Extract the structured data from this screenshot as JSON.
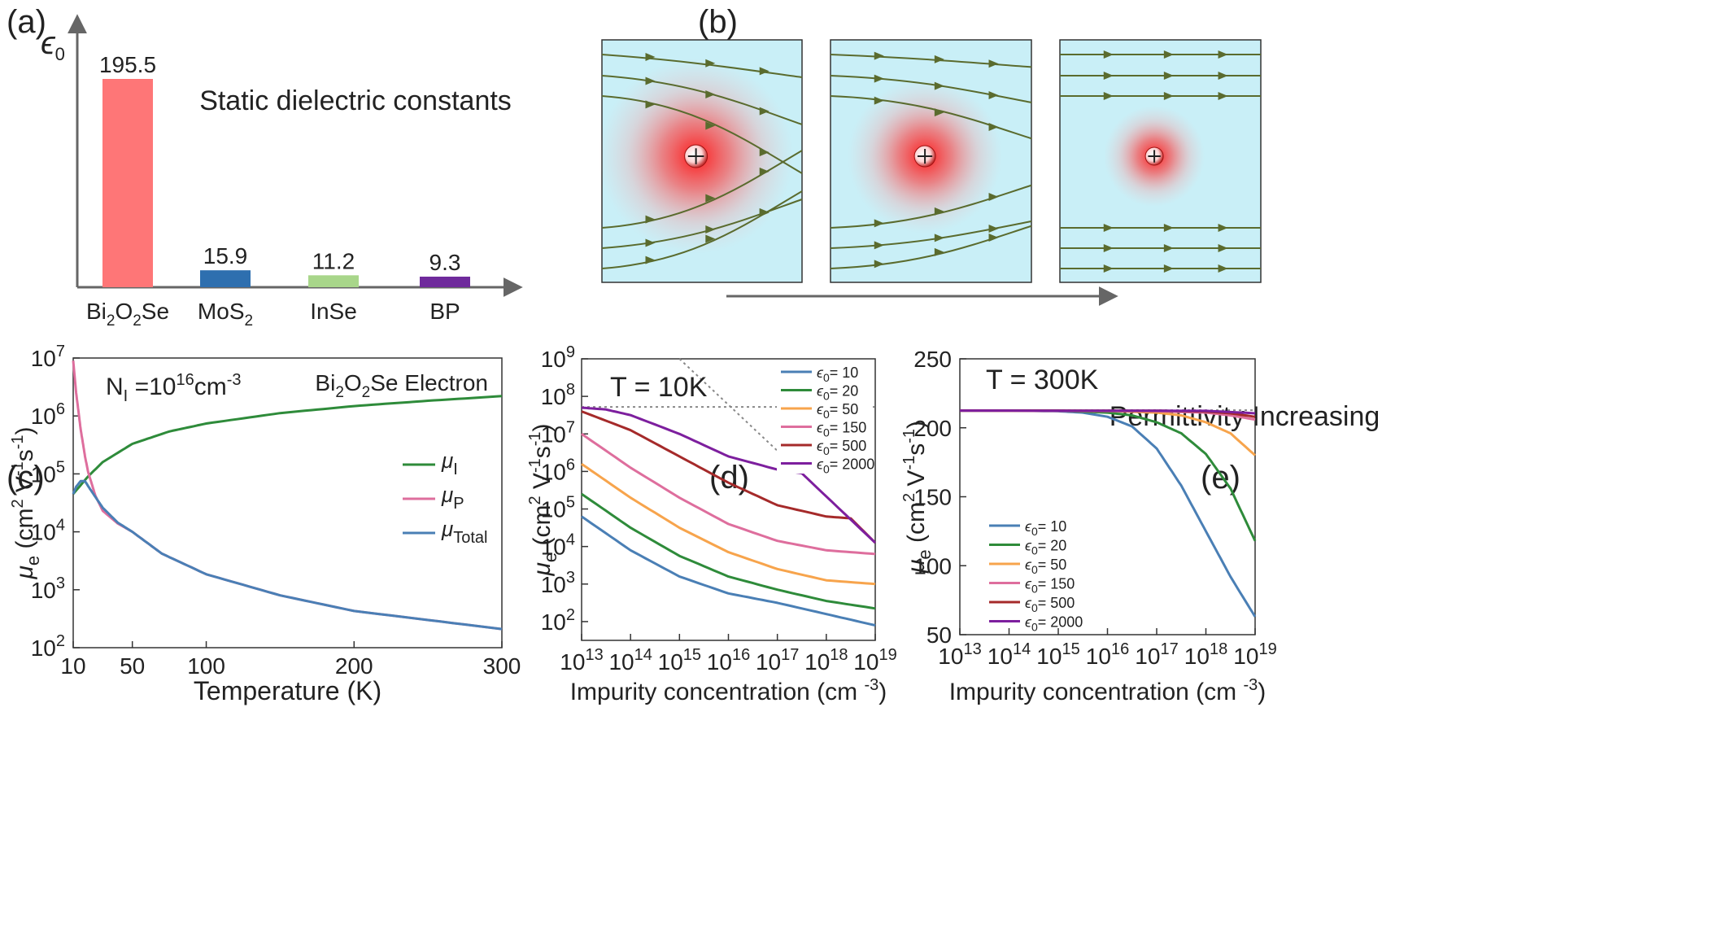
{
  "panel_labels": {
    "a": "(a)",
    "b": "(b)",
    "c": "(c)",
    "d": "(d)",
    "e": "(e)"
  },
  "colors": {
    "eps10": "#4a7fb5",
    "eps20": "#2e8b3a",
    "eps50": "#f7a44c",
    "eps150": "#de6e9d",
    "eps500": "#a52a2a",
    "eps2000": "#7d1f9e",
    "mu_I": "#2e8b3a",
    "mu_P": "#de6e9d",
    "mu_Total": "#4a7fb5",
    "field_bg": "#c9eff7",
    "field_line": "#5a6b2e",
    "charge": "#e8201f"
  },
  "panel_b": {
    "arrow_label": "Permittivity Increasing"
  },
  "chart_data": [
    {
      "id": "a",
      "type": "bar",
      "title": "Static dielectric constants",
      "ylabel": "ϵ0",
      "categories": [
        "Bi2O2Se",
        "MoS2",
        "InSe",
        "BP"
      ],
      "category_parts": [
        [
          {
            "t": "Bi"
          },
          {
            "t": "2",
            "sub": true
          },
          {
            "t": "O"
          },
          {
            "t": "2",
            "sub": true
          },
          {
            "t": "Se"
          }
        ],
        [
          {
            "t": "MoS"
          },
          {
            "t": "2",
            "sub": true
          }
        ],
        [
          {
            "t": "InSe"
          }
        ],
        [
          {
            "t": "BP"
          }
        ]
      ],
      "values": [
        195.5,
        15.9,
        11.2,
        9.3
      ],
      "value_labels": [
        "195.5",
        "15.9",
        "11.2",
        "9.3"
      ],
      "colors": [
        "#fe7677",
        "#2e6faf",
        "#a8d68a",
        "#6f2a9c"
      ],
      "ylim": [
        0,
        200
      ]
    },
    {
      "id": "c",
      "type": "line",
      "annotation_left": "NI =10^16 cm^-3",
      "annotation_right": "Bi2O2Se  Electron",
      "xlabel": "Temperature (K)",
      "ylabel": "μe (cm2 V-1 s-1)",
      "yscale": "log",
      "xlim": [
        10,
        300
      ],
      "ylim": [
        100,
        10000000
      ],
      "xticks": [
        10,
        50,
        100,
        200,
        300
      ],
      "yticks_exp": [
        2,
        3,
        4,
        5,
        6,
        7
      ],
      "series": [
        {
          "name": "μI",
          "color": "#2e8b3a",
          "x": [
            10,
            20,
            30,
            50,
            75,
            100,
            150,
            200,
            250,
            300
          ],
          "y": [
            45000,
            90000,
            160000,
            330000,
            540000,
            740000,
            1120000,
            1480000,
            1830000,
            2200000
          ]
        },
        {
          "name": "μP",
          "color": "#de6e9d",
          "x": [
            10,
            12,
            15,
            18,
            20,
            25,
            30,
            40,
            50,
            70,
            100,
            150,
            200,
            300
          ],
          "y": [
            9000000,
            2500000,
            600000,
            200000,
            110000,
            42000,
            23000,
            14000,
            10000,
            4200,
            1850,
            800,
            430,
            210
          ]
        },
        {
          "name": "μTotal",
          "color": "#4a7fb5",
          "x": [
            10,
            12,
            15,
            18,
            20,
            25,
            30,
            40,
            50,
            70,
            100,
            150,
            200,
            300
          ],
          "y": [
            45000,
            60000,
            75000,
            75000,
            62000,
            40000,
            26000,
            14500,
            10000,
            4200,
            1850,
            800,
            430,
            210
          ]
        }
      ]
    },
    {
      "id": "d",
      "type": "line",
      "annotation": "T = 10K",
      "xlabel": "Impurity concentration (cm -3)",
      "ylabel": "μe (cm2 V-1 s-1)",
      "xscale": "log",
      "yscale": "log",
      "xlim_exp": [
        13,
        19
      ],
      "ylim_exp": [
        1.5,
        9
      ],
      "xticks_exp": [
        13,
        14,
        15,
        16,
        17,
        18,
        19
      ],
      "yticks_exp": [
        2,
        3,
        4,
        5,
        6,
        7,
        8,
        9
      ],
      "series": [
        {
          "name": "ϵ0 = 10",
          "color": "#4a7fb5",
          "x_exp": [
            13,
            14,
            15,
            16,
            17,
            18,
            19
          ],
          "y_exp": [
            4.8,
            3.9,
            3.2,
            2.75,
            2.5,
            2.2,
            1.9
          ]
        },
        {
          "name": "ϵ0 = 20",
          "color": "#2e8b3a",
          "x_exp": [
            13,
            14,
            15,
            16,
            17,
            18,
            19
          ],
          "y_exp": [
            5.4,
            4.5,
            3.75,
            3.2,
            2.85,
            2.55,
            2.35
          ]
        },
        {
          "name": "ϵ0 = 50",
          "color": "#f7a44c",
          "x_exp": [
            13,
            14,
            15,
            16,
            17,
            18,
            19
          ],
          "y_exp": [
            6.2,
            5.3,
            4.5,
            3.85,
            3.4,
            3.1,
            3.0
          ]
        },
        {
          "name": "ϵ0 = 150",
          "color": "#de6e9d",
          "x_exp": [
            13,
            14,
            15,
            16,
            17,
            18,
            19
          ],
          "y_exp": [
            7.0,
            6.1,
            5.3,
            4.6,
            4.15,
            3.9,
            3.8
          ]
        },
        {
          "name": "ϵ0 = 500",
          "color": "#a52a2a",
          "x_exp": [
            13,
            14,
            15,
            16,
            17,
            18,
            18.5,
            19
          ],
          "y_exp": [
            7.6,
            7.1,
            6.4,
            5.7,
            5.1,
            4.8,
            4.75,
            4.1
          ]
        },
        {
          "name": "ϵ0 = 2000",
          "color": "#7d1f9e",
          "x_exp": [
            13,
            13.5,
            14,
            15,
            16,
            17,
            17.5,
            19
          ],
          "y_exp": [
            7.7,
            7.65,
            7.5,
            7.0,
            6.4,
            6.05,
            5.95,
            4.1
          ]
        }
      ],
      "reference_lines": [
        {
          "style": "dotted",
          "x_exp": [
            13,
            19
          ],
          "y_exp": [
            7.72,
            7.72
          ]
        },
        {
          "style": "dotted",
          "x_exp": [
            15,
            19
          ],
          "y_exp": [
            9.0,
            4.1
          ]
        }
      ],
      "legend_position": "top-right"
    },
    {
      "id": "e",
      "type": "line",
      "annotation": "T = 300K",
      "xlabel": "Impurity concentration (cm -3)",
      "ylabel": "μe (cm2 V-1 s-1)",
      "xscale": "log",
      "xlim_exp": [
        13,
        19
      ],
      "ylim": [
        50,
        250
      ],
      "xticks_exp": [
        13,
        14,
        15,
        16,
        17,
        18,
        19
      ],
      "yticks": [
        50,
        100,
        150,
        200,
        250
      ],
      "series": [
        {
          "name": "ϵ0 = 10",
          "color": "#4a7fb5",
          "x_exp": [
            13,
            14,
            15,
            15.5,
            16,
            16.5,
            17,
            17.5,
            18,
            18.5,
            19
          ],
          "y": [
            212.5,
            212.5,
            212,
            211,
            208,
            201,
            185,
            158,
            125,
            92,
            63
          ]
        },
        {
          "name": "ϵ0 = 20",
          "color": "#2e8b3a",
          "x_exp": [
            13,
            15,
            16,
            16.5,
            17,
            17.5,
            18,
            18.5,
            19
          ],
          "y": [
            212.5,
            212.5,
            211,
            209,
            204,
            196,
            181,
            156,
            118
          ]
        },
        {
          "name": "ϵ0 = 50",
          "color": "#f7a44c",
          "x_exp": [
            13,
            16,
            17,
            17.5,
            18,
            18.5,
            19
          ],
          "y": [
            212.5,
            212.3,
            211,
            209,
            204,
            196,
            180
          ]
        },
        {
          "name": "ϵ0 = 150",
          "color": "#de6e9d",
          "x_exp": [
            13,
            17,
            18,
            18.5,
            19
          ],
          "y": [
            212.5,
            212,
            211,
            209,
            206
          ]
        },
        {
          "name": "ϵ0 = 500",
          "color": "#a52a2a",
          "x_exp": [
            13,
            17,
            18,
            18.5,
            19
          ],
          "y": [
            212.5,
            212.4,
            211.8,
            210.5,
            208
          ]
        },
        {
          "name": "ϵ0 = 2000",
          "color": "#7d1f9e",
          "x_exp": [
            13,
            18,
            19
          ],
          "y": [
            212.5,
            212.3,
            210.5
          ]
        }
      ],
      "reference_lines": [
        {
          "style": "dotted",
          "x_exp": [
            13,
            19
          ],
          "y": [
            212.8,
            212.8
          ]
        }
      ],
      "legend_position": "bottom-left"
    }
  ]
}
